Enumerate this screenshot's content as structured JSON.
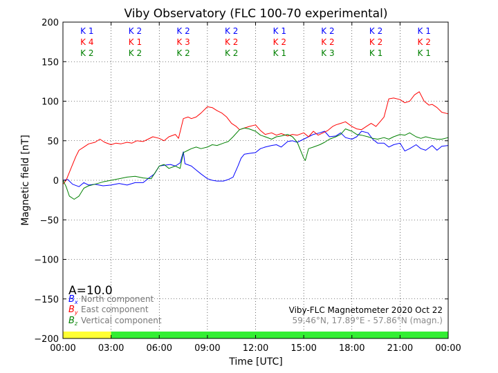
{
  "chart_data": {
    "type": "line",
    "title": "Viby Observatory (FLC 100-70 experimental)",
    "xlabel": "Time [UTC]",
    "ylabel": "Magnetic field [nT]",
    "xlim": [
      0,
      24
    ],
    "ylim": [
      -200,
      200
    ],
    "x_tick_labels": [
      "00:00",
      "03:00",
      "06:00",
      "09:00",
      "12:00",
      "15:00",
      "18:00",
      "21:00",
      "00:00"
    ],
    "y_ticks": [
      -200,
      -150,
      -100,
      -50,
      0,
      50,
      100,
      150,
      200
    ],
    "y_tick_labels": [
      "−200",
      "−150",
      "−100",
      "−50",
      "0",
      "50",
      "100",
      "150",
      "200"
    ],
    "grid": true,
    "k_index_rows": [
      {
        "color": "#0000ff",
        "values": [
          "K 1",
          "K 2",
          "K 2",
          "K 2",
          "K 1",
          "K 2",
          "K 2",
          "K 1"
        ]
      },
      {
        "color": "#ff0000",
        "values": [
          "K 4",
          "K 1",
          "K 3",
          "K 2",
          "K 2",
          "K 2",
          "K 2",
          "K 2"
        ]
      },
      {
        "color": "#008000",
        "values": [
          "K 2",
          "K 2",
          "K 2",
          "K 2",
          "K 1",
          "K 3",
          "K 1",
          "K 1"
        ]
      }
    ],
    "activity_bar": [
      {
        "from": 0,
        "to": 3,
        "color": "#ffff33"
      },
      {
        "from": 3,
        "to": 24,
        "color": "#33ee33"
      }
    ],
    "a_index": "A=10.0",
    "legend": {
      "placement": "bottom-left",
      "entries": [
        {
          "symbol": "B",
          "sub": "x",
          "label": "North component",
          "color": "#0000ff"
        },
        {
          "symbol": "B",
          "sub": "y",
          "label": "East component",
          "color": "#ff0000"
        },
        {
          "symbol": "B",
          "sub": "z",
          "label": "Vertical component",
          "color": "#008000"
        }
      ]
    },
    "station_line1": "Viby-FLC Magnetometer 2020 Oct 22",
    "station_line2": "59.46°N, 17.89°E - 57.86°N (magn.)",
    "series": [
      {
        "name": "North component",
        "color": "#0000ff",
        "x": [
          0,
          0.3,
          0.6,
          1,
          1.3,
          1.6,
          2,
          2.5,
          3,
          3.5,
          4,
          4.5,
          5,
          5.3,
          5.7,
          6,
          6.3,
          6.7,
          7,
          7.3,
          7.5,
          7.6,
          8,
          8.3,
          8.6,
          9,
          9.3,
          9.6,
          10,
          10.3,
          10.6,
          10.9,
          11.1,
          11.3,
          11.6,
          12,
          12.3,
          12.6,
          13,
          13.3,
          13.6,
          14,
          14.3,
          14.6,
          15,
          15.3,
          15.6,
          16,
          16.3,
          16.6,
          17,
          17.3,
          17.6,
          18,
          18.3,
          18.6,
          19,
          19.3,
          19.6,
          20,
          20.3,
          20.6,
          21,
          21.3,
          21.6,
          22,
          22.3,
          22.6,
          23,
          23.3,
          23.6,
          24
        ],
        "y": [
          0,
          1,
          -5,
          -8,
          -3,
          -6,
          -5,
          -7,
          -6,
          -4,
          -6,
          -3,
          -3,
          2,
          8,
          18,
          19,
          20,
          18,
          22,
          36,
          21,
          18,
          13,
          8,
          2,
          0,
          -1,
          -1,
          1,
          4,
          18,
          28,
          33,
          34,
          35,
          40,
          42,
          44,
          45,
          42,
          49,
          50,
          48,
          52,
          55,
          58,
          60,
          62,
          55,
          56,
          60,
          54,
          52,
          55,
          62,
          60,
          52,
          47,
          47,
          42,
          45,
          47,
          37,
          40,
          45,
          40,
          38,
          44,
          38,
          43,
          44
        ]
      },
      {
        "name": "East component",
        "color": "#ff0000",
        "x": [
          0,
          0.2,
          0.5,
          0.8,
          1,
          1.3,
          1.6,
          2,
          2.3,
          2.6,
          3,
          3.3,
          3.6,
          4,
          4.3,
          4.6,
          5,
          5.3,
          5.6,
          6,
          6.3,
          6.6,
          7,
          7.2,
          7.5,
          7.8,
          8,
          8.3,
          8.6,
          9,
          9.3,
          9.6,
          9.9,
          10.2,
          10.5,
          10.8,
          11,
          11.3,
          11.6,
          12,
          12.3,
          12.6,
          13,
          13.3,
          13.6,
          14,
          14.3,
          14.6,
          15,
          15.3,
          15.6,
          15.9,
          16.2,
          16.5,
          16.8,
          17,
          17.3,
          17.6,
          18,
          18.3,
          18.6,
          18.9,
          19.2,
          19.5,
          19.8,
          20,
          20.3,
          20.6,
          21,
          21.3,
          21.6,
          21.9,
          22.2,
          22.5,
          22.8,
          23,
          23.3,
          23.6,
          24
        ],
        "y": [
          -5,
          0,
          15,
          30,
          38,
          42,
          46,
          48,
          52,
          48,
          45,
          47,
          46,
          48,
          47,
          50,
          49,
          52,
          55,
          53,
          50,
          55,
          58,
          53,
          78,
          80,
          78,
          80,
          85,
          93,
          92,
          88,
          85,
          80,
          72,
          68,
          64,
          66,
          68,
          70,
          63,
          58,
          60,
          57,
          59,
          56,
          58,
          57,
          60,
          55,
          62,
          57,
          60,
          63,
          68,
          70,
          72,
          74,
          68,
          65,
          64,
          68,
          72,
          68,
          75,
          80,
          103,
          104,
          102,
          98,
          100,
          108,
          112,
          100,
          95,
          96,
          92,
          86,
          84
        ]
      },
      {
        "name": "Vertical component",
        "color": "#008000",
        "x": [
          0,
          0.2,
          0.4,
          0.7,
          1,
          1.3,
          1.6,
          2,
          2.5,
          3,
          3.5,
          4,
          4.5,
          5,
          5.5,
          6,
          6.3,
          6.6,
          7,
          7.3,
          7.5,
          7.8,
          8,
          8.3,
          8.6,
          9,
          9.3,
          9.6,
          10,
          10.3,
          10.6,
          11,
          11.3,
          11.6,
          12,
          12.3,
          12.6,
          13,
          13.3,
          13.6,
          14,
          14.3,
          14.6,
          15,
          15.1,
          15.3,
          15.6,
          16,
          16.3,
          16.6,
          17,
          17.3,
          17.6,
          18,
          18.3,
          18.6,
          19,
          19.3,
          19.6,
          20,
          20.3,
          20.6,
          21,
          21.3,
          21.6,
          22,
          22.3,
          22.6,
          23,
          23.3,
          23.6,
          24
        ],
        "y": [
          0,
          -8,
          -20,
          -24,
          -20,
          -10,
          -7,
          -5,
          -2,
          0,
          2,
          4,
          5,
          3,
          2,
          18,
          20,
          15,
          18,
          15,
          35,
          38,
          40,
          42,
          40,
          42,
          45,
          44,
          47,
          49,
          55,
          64,
          66,
          65,
          62,
          57,
          55,
          52,
          55,
          56,
          58,
          55,
          48,
          28,
          25,
          40,
          42,
          45,
          48,
          52,
          55,
          58,
          65,
          62,
          58,
          57,
          55,
          53,
          52,
          54,
          52,
          55,
          58,
          57,
          60,
          55,
          53,
          55,
          53,
          52,
          52,
          54
        ]
      }
    ]
  }
}
